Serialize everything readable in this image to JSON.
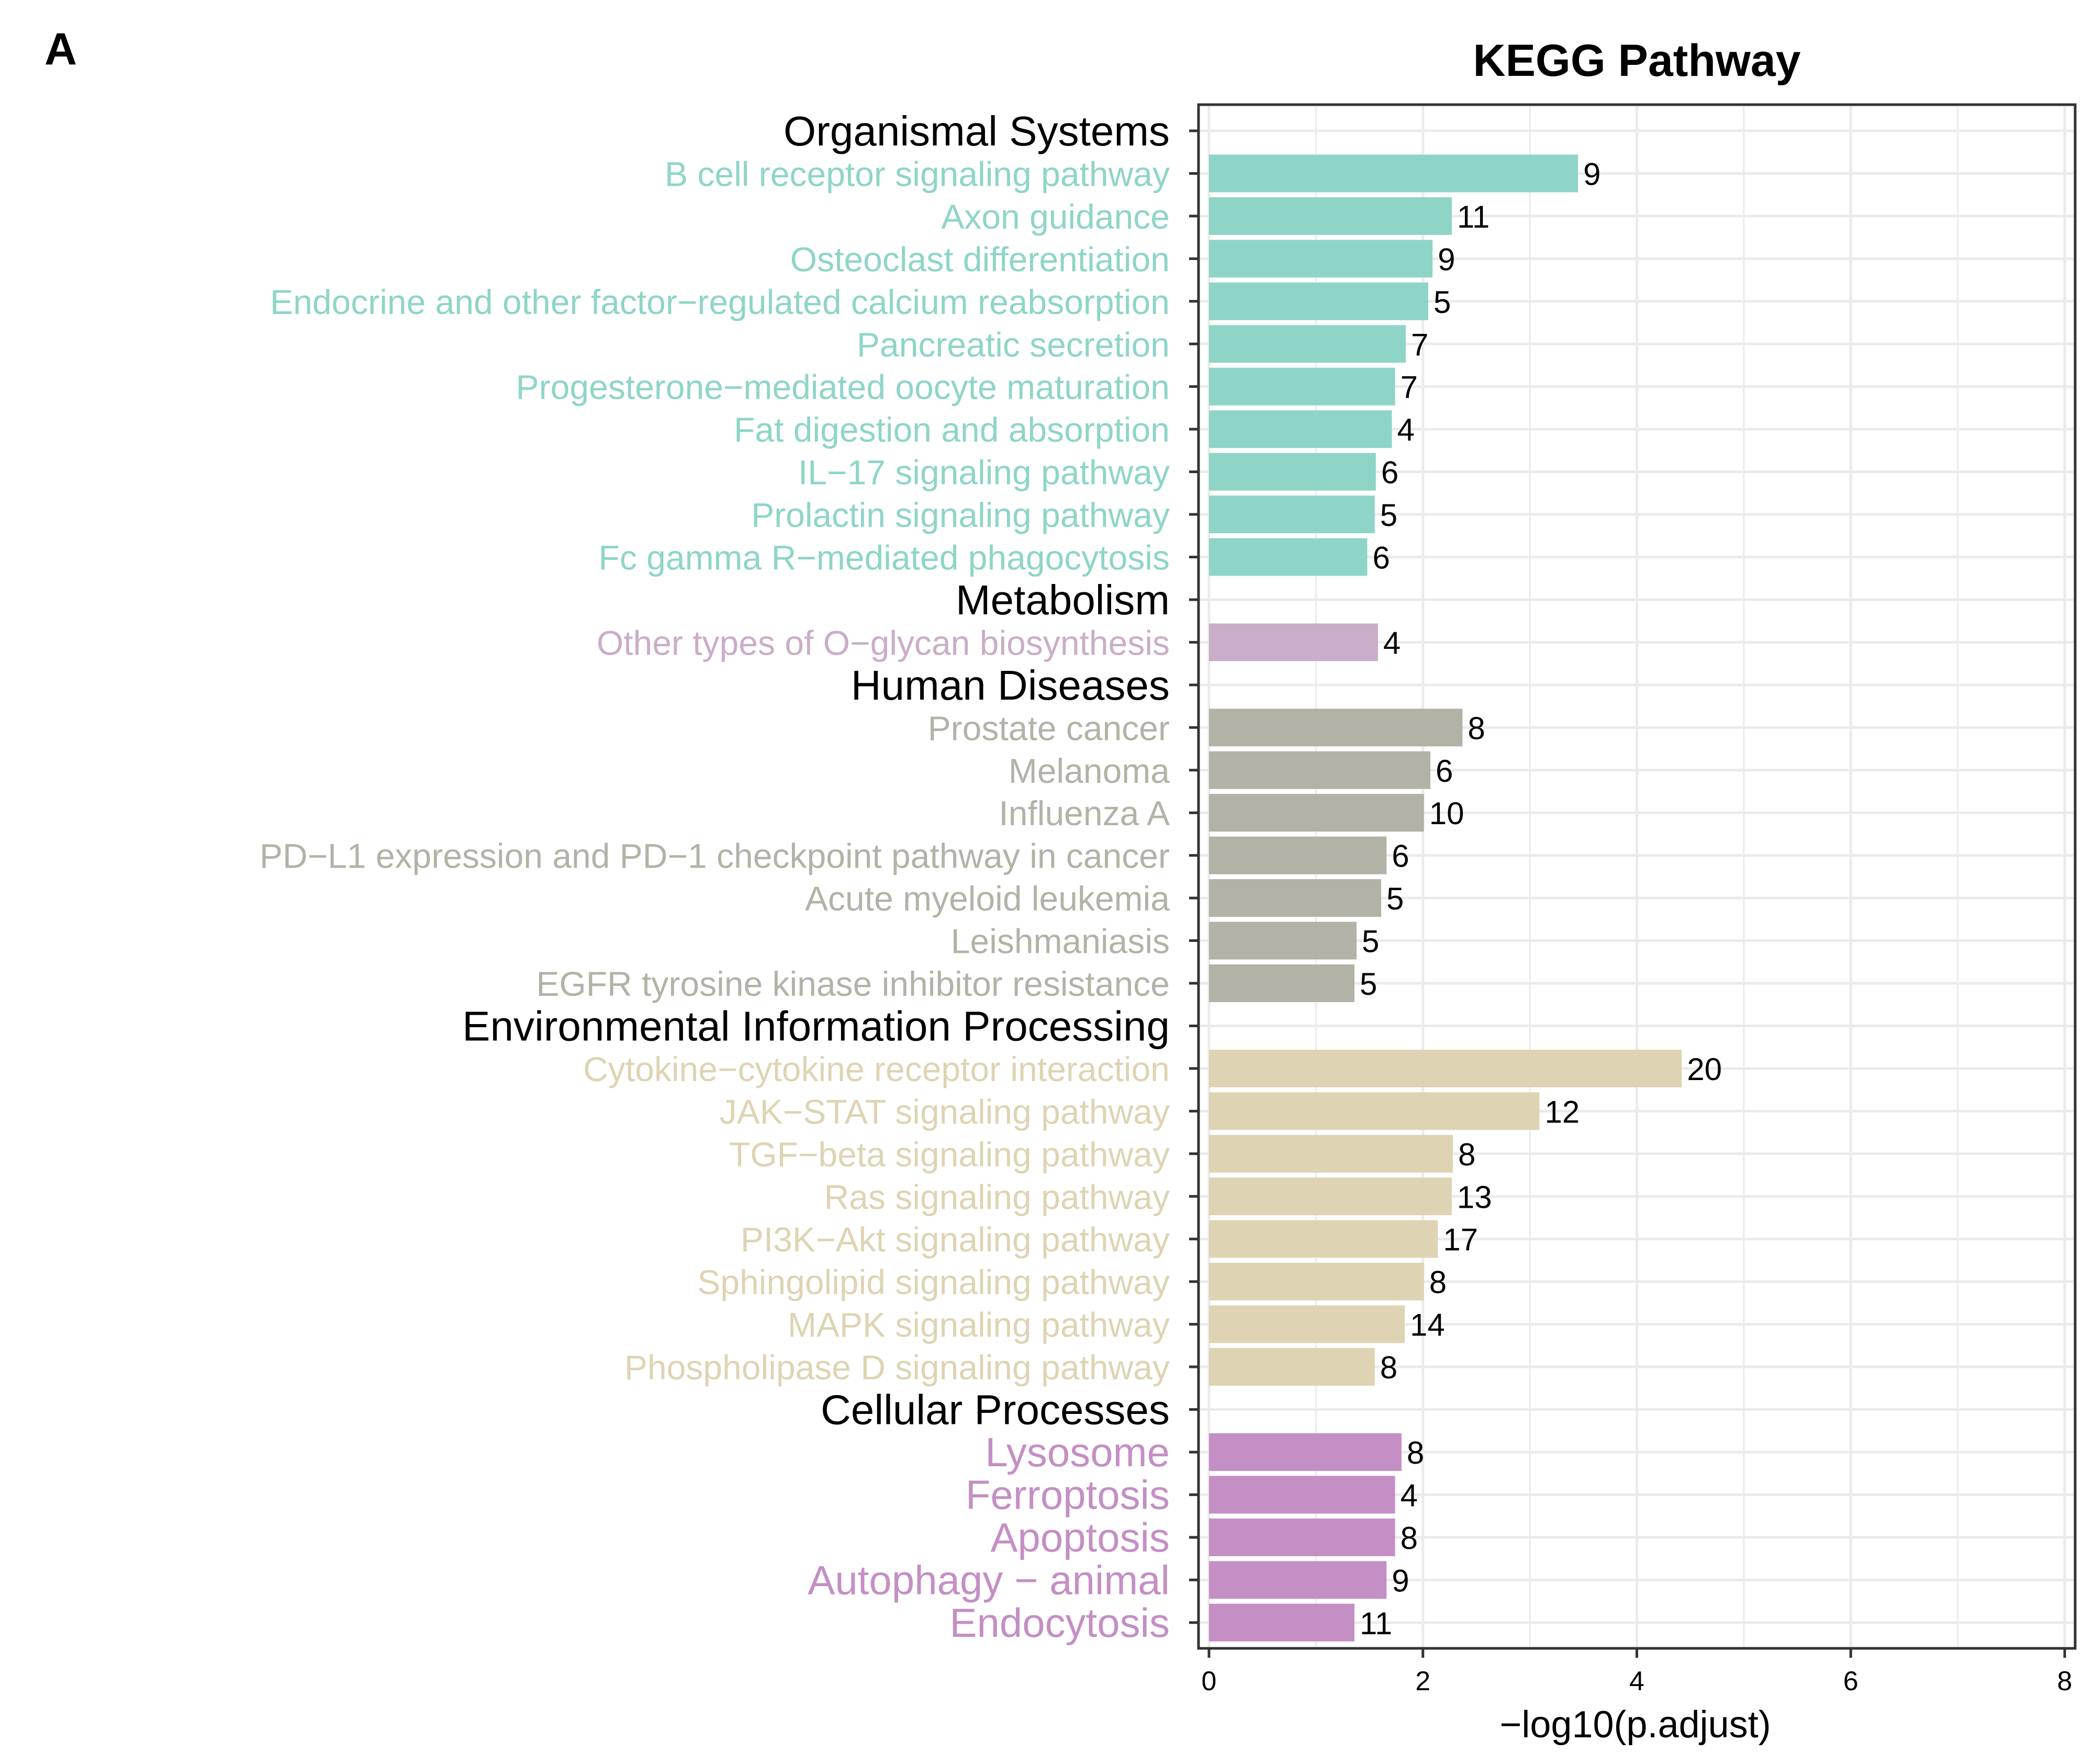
{
  "panel_label": "A",
  "chart_data": {
    "type": "bar",
    "orientation": "horizontal",
    "title": "KEGG Pathway",
    "xlabel": "−log10(p.adjust)",
    "ylabel": "",
    "xlim": [
      0,
      8
    ],
    "xticks": [
      "0",
      "2",
      "4",
      "6",
      "8"
    ],
    "grid": true,
    "value_label": "gene count",
    "groups": [
      {
        "name": "Organismal Systems",
        "color": "#8ED5C8",
        "items": [
          {
            "label": "B cell receptor signaling pathway",
            "value": 3.45,
            "count": "9"
          },
          {
            "label": "Axon guidance",
            "value": 2.27,
            "count": "11"
          },
          {
            "label": "Osteoclast differentiation",
            "value": 2.09,
            "count": "9"
          },
          {
            "label": "Endocrine and other factor−regulated calcium reabsorption",
            "value": 2.05,
            "count": "5"
          },
          {
            "label": "Pancreatic secretion",
            "value": 1.84,
            "count": "7"
          },
          {
            "label": "Progesterone−mediated oocyte maturation",
            "value": 1.74,
            "count": "7"
          },
          {
            "label": "Fat digestion and absorption",
            "value": 1.71,
            "count": "4"
          },
          {
            "label": "IL−17 signaling pathway",
            "value": 1.56,
            "count": "6"
          },
          {
            "label": "Prolactin signaling pathway",
            "value": 1.55,
            "count": "5"
          },
          {
            "label": "Fc gamma R−mediated phagocytosis",
            "value": 1.48,
            "count": "6"
          }
        ]
      },
      {
        "name": "Metabolism",
        "color": "#CAADC8",
        "items": [
          {
            "label": "Other types of O−glycan biosynthesis",
            "value": 1.58,
            "count": "4"
          }
        ]
      },
      {
        "name": "Human Diseases",
        "color": "#B2B3A6",
        "items": [
          {
            "label": "Prostate cancer",
            "value": 2.37,
            "count": "8"
          },
          {
            "label": "Melanoma",
            "value": 2.07,
            "count": "6"
          },
          {
            "label": "Influenza A",
            "value": 2.01,
            "count": "10"
          },
          {
            "label": "PD−L1 expression and PD−1 checkpoint pathway in cancer",
            "value": 1.66,
            "count": "6"
          },
          {
            "label": "Acute myeloid leukemia",
            "value": 1.61,
            "count": "5"
          },
          {
            "label": "Leishmaniasis",
            "value": 1.38,
            "count": "5"
          },
          {
            "label": "EGFR tyrosine kinase inhibitor resistance",
            "value": 1.36,
            "count": "5"
          }
        ]
      },
      {
        "name": "Environmental Information Processing",
        "color": "#DED4B3",
        "items": [
          {
            "label": "Cytokine−cytokine receptor interaction",
            "value": 4.42,
            "count": "20"
          },
          {
            "label": "JAK−STAT signaling pathway",
            "value": 3.09,
            "count": "12"
          },
          {
            "label": "TGF−beta signaling pathway",
            "value": 2.28,
            "count": "8"
          },
          {
            "label": "Ras signaling pathway",
            "value": 2.27,
            "count": "13"
          },
          {
            "label": "PI3K−Akt signaling pathway",
            "value": 2.14,
            "count": "17"
          },
          {
            "label": "Sphingolipid signaling pathway",
            "value": 2.01,
            "count": "8"
          },
          {
            "label": "MAPK signaling pathway",
            "value": 1.83,
            "count": "14"
          },
          {
            "label": "Phospholipase D signaling pathway",
            "value": 1.55,
            "count": "8"
          }
        ]
      },
      {
        "name": "Cellular Processes",
        "color": "#C48FC4",
        "items": [
          {
            "label": "Lysosome",
            "value": 1.8,
            "count": "8"
          },
          {
            "label": "Ferroptosis",
            "value": 1.74,
            "count": "4"
          },
          {
            "label": "Apoptosis",
            "value": 1.74,
            "count": "8"
          },
          {
            "label": "Autophagy − animal",
            "value": 1.66,
            "count": "9"
          },
          {
            "label": "Endocytosis",
            "value": 1.36,
            "count": "11"
          }
        ]
      }
    ]
  }
}
